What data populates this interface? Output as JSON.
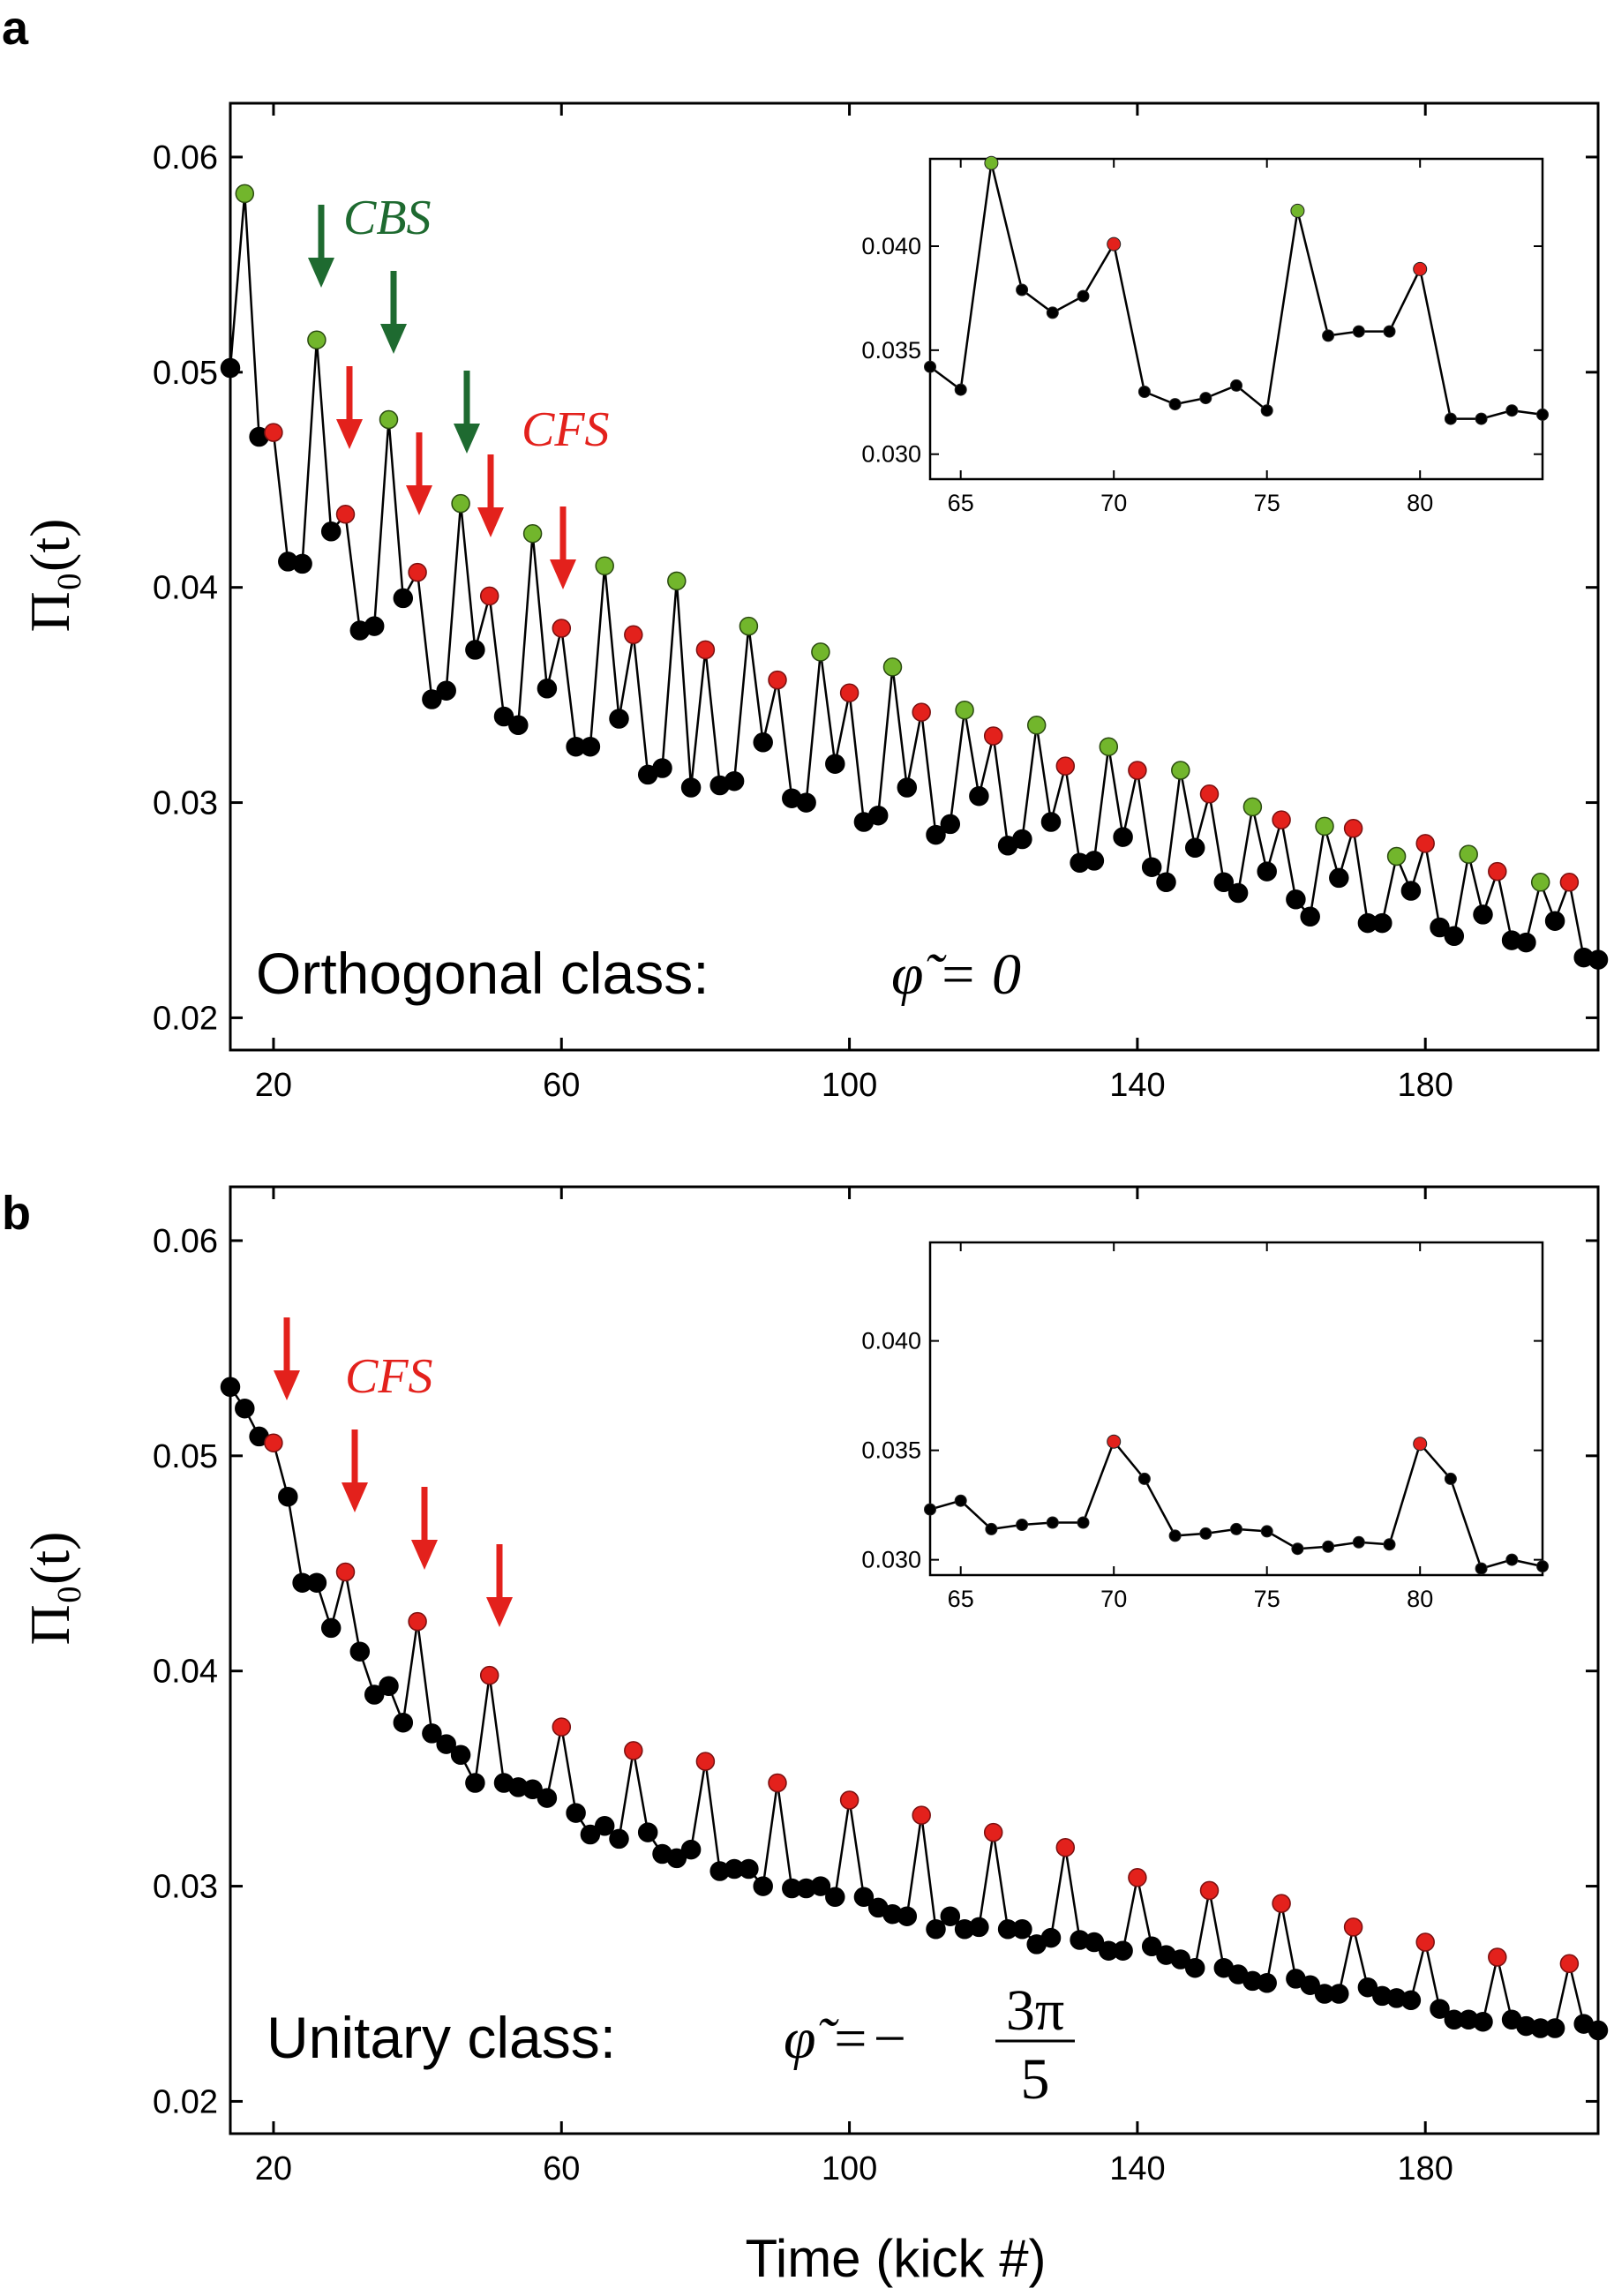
{
  "colors": {
    "black_point": "#000000",
    "cbs_green": "#72b62c",
    "cfs_red": "#e3211c",
    "cbs_arrow": "#1e6a30",
    "cfs_arrow": "#e3211c"
  },
  "figure": {
    "xlabel": "Time (kick #)",
    "ylabel_text": "Π₀(t)"
  },
  "panels": [
    {
      "letter": "a",
      "class_label": "Orthogonal class:",
      "class_math": "φ̃ = 0",
      "annotations": {
        "cbs": "CBS",
        "cfs": "CFS"
      }
    },
    {
      "letter": "b",
      "class_label": "Unitary class:",
      "class_math": "φ̃ =−",
      "class_math_num": "3π",
      "class_math_den": "5",
      "annotations": {
        "cfs": "CFS"
      }
    }
  ],
  "chart_data": [
    {
      "type": "scatter",
      "panel": "a",
      "xlim": [
        14,
        204
      ],
      "ylim": [
        0.0185,
        0.0625
      ],
      "xticks": [
        20,
        60,
        100,
        140,
        180
      ],
      "yticks": [
        0.02,
        0.03,
        0.04,
        0.05,
        0.06
      ],
      "xtick_labels": [
        "20",
        "60",
        "100",
        "140",
        "180"
      ],
      "ytick_labels": [
        "0.02",
        "0.03",
        "0.04",
        "0.05",
        "0.06"
      ],
      "x_start": 14,
      "values": [
        0.0502,
        0.0583,
        0.047,
        0.0472,
        0.0412,
        0.0411,
        0.0515,
        0.0426,
        0.0434,
        0.038,
        0.0382,
        0.0478,
        0.0395,
        0.0407,
        0.0348,
        0.0352,
        0.0439,
        0.0371,
        0.0396,
        0.034,
        0.0336,
        0.0425,
        0.0353,
        0.0381,
        0.0326,
        0.0326,
        0.041,
        0.0339,
        0.0378,
        0.0313,
        0.0316,
        0.0403,
        0.0307,
        0.0371,
        0.0308,
        0.031,
        0.0382,
        0.0328,
        0.0357,
        0.0302,
        0.03,
        0.037,
        0.0318,
        0.0351,
        0.0291,
        0.0294,
        0.0363,
        0.0307,
        0.0342,
        0.0285,
        0.029,
        0.0343,
        0.0303,
        0.0331,
        0.028,
        0.0283,
        0.0336,
        0.0291,
        0.0317,
        0.0272,
        0.0273,
        0.0326,
        0.0284,
        0.0315,
        0.027,
        0.0263,
        0.0315,
        0.0279,
        0.0304,
        0.0263,
        0.0258,
        0.0298,
        0.0268,
        0.0292,
        0.0255,
        0.0247,
        0.0289,
        0.0265,
        0.0288,
        0.0244,
        0.0244,
        0.0275,
        0.0259,
        0.0281,
        0.0242,
        0.0238,
        0.0276,
        0.0248,
        0.0268,
        0.0236,
        0.0235,
        0.0263,
        0.0245,
        0.0263,
        0.0228,
        0.0227
      ],
      "cbs_x": [
        16,
        26,
        36,
        46,
        56,
        66,
        76,
        86,
        96,
        106,
        116,
        126,
        136,
        146,
        156,
        166,
        176,
        186,
        196
      ],
      "cfs_x": [
        20,
        30,
        40,
        50,
        60,
        70,
        80,
        90,
        100,
        110,
        120,
        130,
        140,
        150,
        160,
        170,
        180,
        190,
        200
      ],
      "inset": {
        "type": "line",
        "x": [
          64,
          65,
          66,
          67,
          68,
          69,
          70,
          71,
          72,
          73,
          74,
          75,
          76,
          77,
          78,
          79,
          80,
          81,
          82,
          83,
          84
        ],
        "values": [
          0.0342,
          0.0331,
          0.044,
          0.0379,
          0.0368,
          0.0376,
          0.0401,
          0.033,
          0.0324,
          0.0327,
          0.0333,
          0.0321,
          0.0417,
          0.0357,
          0.0359,
          0.0359,
          0.0389,
          0.0317,
          0.0317,
          0.0321,
          0.0319
        ],
        "cbs_x": [
          66,
          76
        ],
        "cfs_x": [
          70,
          80
        ],
        "xlim": [
          64,
          84
        ],
        "ylim": [
          0.0288,
          0.0442
        ],
        "xticks": [
          65,
          70,
          75,
          80
        ],
        "yticks": [
          0.03,
          0.035,
          0.04
        ],
        "xtick_labels": [
          "65",
          "70",
          "75",
          "80"
        ],
        "ytick_labels": [
          "0.030",
          "0.035",
          "0.040"
        ]
      }
    },
    {
      "type": "scatter",
      "panel": "b",
      "xlim": [
        14,
        204
      ],
      "ylim": [
        0.0185,
        0.0625
      ],
      "xticks": [
        20,
        60,
        100,
        140,
        180
      ],
      "yticks": [
        0.02,
        0.03,
        0.04,
        0.05,
        0.06
      ],
      "xtick_labels": [
        "20",
        "60",
        "100",
        "140",
        "180"
      ],
      "ytick_labels": [
        "0.02",
        "0.03",
        "0.04",
        "0.05",
        "0.06"
      ],
      "x_start": 14,
      "values": [
        0.0532,
        0.0522,
        0.0509,
        0.0506,
        0.0481,
        0.0441,
        0.0441,
        0.042,
        0.0446,
        0.0409,
        0.0389,
        0.0393,
        0.0376,
        0.0423,
        0.0371,
        0.0366,
        0.0361,
        0.0348,
        0.0398,
        0.0348,
        0.0346,
        0.0345,
        0.0341,
        0.0374,
        0.0334,
        0.0324,
        0.0328,
        0.0322,
        0.0363,
        0.0325,
        0.0315,
        0.0313,
        0.0317,
        0.0358,
        0.0307,
        0.0308,
        0.0308,
        0.03,
        0.0348,
        0.0299,
        0.0299,
        0.03,
        0.0295,
        0.034,
        0.0295,
        0.029,
        0.0287,
        0.0286,
        0.0333,
        0.028,
        0.0286,
        0.028,
        0.0281,
        0.0325,
        0.028,
        0.028,
        0.0273,
        0.0276,
        0.0318,
        0.0275,
        0.0274,
        0.027,
        0.027,
        0.0304,
        0.0272,
        0.0268,
        0.0266,
        0.0262,
        0.0298,
        0.0262,
        0.0259,
        0.0256,
        0.0255,
        0.0292,
        0.0257,
        0.0254,
        0.025,
        0.025,
        0.0281,
        0.0253,
        0.0249,
        0.0248,
        0.0247,
        0.0274,
        0.0243,
        0.0238,
        0.0238,
        0.0237,
        0.0267,
        0.0238,
        0.0235,
        0.0234,
        0.0234,
        0.0264,
        0.0236,
        0.0233
      ],
      "cfs_x": [
        20,
        30,
        40,
        50,
        60,
        70,
        80,
        90,
        100,
        110,
        120,
        130,
        140,
        150,
        160,
        170,
        180,
        190,
        200
      ],
      "inset": {
        "type": "line",
        "x": [
          64,
          65,
          66,
          67,
          68,
          69,
          70,
          71,
          72,
          73,
          74,
          75,
          76,
          77,
          78,
          79,
          80,
          81,
          82,
          83,
          84
        ],
        "values": [
          0.0323,
          0.0327,
          0.0314,
          0.0316,
          0.0317,
          0.0317,
          0.0354,
          0.0337,
          0.0311,
          0.0312,
          0.0314,
          0.0313,
          0.0305,
          0.0306,
          0.0308,
          0.0307,
          0.0353,
          0.0337,
          0.0296,
          0.03,
          0.0297
        ],
        "cfs_x": [
          70,
          80
        ],
        "xlim": [
          64,
          84
        ],
        "ylim": [
          0.0293,
          0.0445
        ],
        "xticks": [
          65,
          70,
          75,
          80
        ],
        "yticks": [
          0.03,
          0.035,
          0.04
        ],
        "xtick_labels": [
          "65",
          "70",
          "75",
          "80"
        ],
        "ytick_labels": [
          "0.030",
          "0.035",
          "0.040"
        ]
      }
    }
  ]
}
